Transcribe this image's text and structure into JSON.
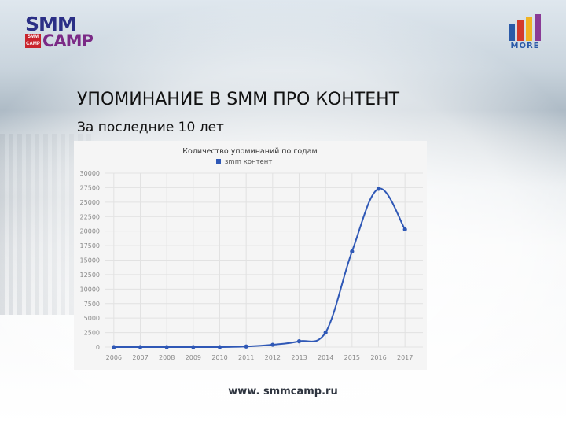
{
  "header": {
    "logo_smm_text": "SMM",
    "logo_camp_text": "CAMP",
    "logo_badge_text": "SMM CAMP",
    "logo_more_text": "MORE"
  },
  "slide": {
    "title": "УПОМИНАНИЕ В SMM ПРО КОНТЕНТ",
    "subtitle": "За последние 10 лет"
  },
  "footer": {
    "url": "www. smmcamp.ru"
  },
  "colors": {
    "series": "#2f58b6",
    "chart_bg": "#f5f5f5",
    "grid": "#e2e2e2",
    "logo_blue": "#2b2f86",
    "logo_purple": "#7b2a86"
  },
  "chart_data": {
    "type": "line",
    "title": "Количество упоминаний по годам",
    "legend_position": "top",
    "grid": true,
    "x": [
      "2006",
      "2007",
      "2008",
      "2009",
      "2010",
      "2011",
      "2012",
      "2013",
      "2014",
      "2015",
      "2016",
      "2017"
    ],
    "series": [
      {
        "name": "smm контент",
        "values": [
          0,
          0,
          0,
          0,
          0,
          100,
          400,
          1000,
          2500,
          16500,
          27300,
          20300
        ]
      }
    ],
    "yticks": [
      "0",
      "2500",
      "5000",
      "7500",
      "10000",
      "12500",
      "15000",
      "17500",
      "20000",
      "22500",
      "25000",
      "27500",
      "30000"
    ],
    "ylim": [
      0,
      30000
    ]
  }
}
